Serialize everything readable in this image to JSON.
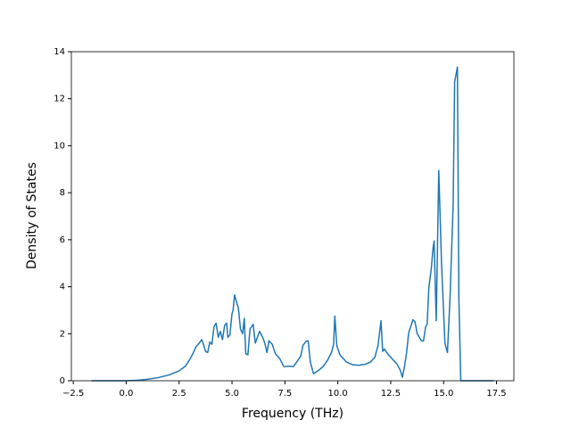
{
  "chart_data": {
    "type": "line",
    "xlabel": "Frequency (THz)",
    "ylabel": "Density of States",
    "xlim": [
      -2.59,
      18.32
    ],
    "ylim": [
      0,
      14
    ],
    "xticks": [
      {
        "value": -2.5,
        "label": "−2.5"
      },
      {
        "value": 0,
        "label": "0.0"
      },
      {
        "value": 2.5,
        "label": "2.5"
      },
      {
        "value": 5,
        "label": "5.0"
      },
      {
        "value": 7.5,
        "label": "7.5"
      },
      {
        "value": 10,
        "label": "10.0"
      },
      {
        "value": 12.5,
        "label": "12.5"
      },
      {
        "value": 15,
        "label": "15.0"
      },
      {
        "value": 17.5,
        "label": "17.5"
      }
    ],
    "yticks": [
      0,
      2,
      4,
      6,
      8,
      10,
      12,
      14
    ],
    "color": "#1f77b4",
    "x": [
      -1.64,
      0,
      0.5,
      1,
      1.5,
      2,
      2.5,
      2.8,
      3.0,
      3.15,
      3.3,
      3.45,
      3.57,
      3.65,
      3.75,
      3.85,
      3.95,
      4.05,
      4.15,
      4.25,
      4.35,
      4.45,
      4.55,
      4.65,
      4.75,
      4.8,
      4.9,
      5.0,
      5.05,
      5.12,
      5.2,
      5.3,
      5.4,
      5.5,
      5.58,
      5.65,
      5.75,
      5.85,
      6.0,
      6.1,
      6.3,
      6.45,
      6.55,
      6.65,
      6.75,
      6.9,
      7.05,
      7.25,
      7.45,
      7.7,
      7.9,
      8.1,
      8.25,
      8.35,
      8.5,
      8.6,
      8.7,
      8.85,
      9.1,
      9.3,
      9.5,
      9.7,
      9.8,
      9.86,
      9.95,
      10.1,
      10.4,
      10.7,
      11.0,
      11.3,
      11.55,
      11.75,
      11.9,
      12.04,
      12.12,
      12.2,
      12.35,
      12.55,
      12.8,
      12.95,
      13.05,
      13.15,
      13.25,
      13.35,
      13.55,
      13.65,
      13.75,
      13.95,
      14.05,
      14.15,
      14.22,
      14.3,
      14.42,
      14.5,
      14.55,
      14.65,
      14.77,
      14.9,
      15.06,
      15.18,
      15.3,
      15.45,
      15.52,
      15.65,
      15.72,
      15.81,
      16.5,
      17.37
    ],
    "values": [
      0,
      0,
      0.02,
      0.06,
      0.13,
      0.24,
      0.42,
      0.62,
      0.9,
      1.15,
      1.45,
      1.6,
      1.75,
      1.55,
      1.25,
      1.2,
      1.65,
      1.55,
      2.3,
      2.45,
      1.85,
      2.1,
      1.75,
      2.35,
      2.45,
      1.85,
      1.95,
      2.85,
      3.0,
      3.65,
      3.4,
      3.1,
      2.2,
      2.0,
      2.65,
      1.15,
      1.1,
      2.2,
      2.4,
      1.6,
      2.1,
      1.85,
      1.6,
      1.2,
      1.7,
      1.55,
      1.15,
      0.95,
      0.6,
      0.62,
      0.6,
      0.85,
      1.05,
      1.5,
      1.68,
      1.7,
      0.8,
      0.3,
      0.45,
      0.6,
      0.85,
      1.2,
      1.55,
      2.75,
      1.5,
      1.1,
      0.8,
      0.68,
      0.66,
      0.7,
      0.8,
      1.0,
      1.5,
      2.55,
      1.25,
      1.35,
      1.15,
      0.95,
      0.7,
      0.45,
      0.15,
      0.6,
      1.2,
      2.05,
      2.6,
      2.5,
      2.0,
      1.7,
      1.7,
      2.3,
      2.4,
      3.95,
      4.8,
      5.65,
      5.95,
      2.55,
      8.95,
      5.0,
      1.6,
      1.2,
      3.5,
      7.5,
      12.7,
      13.35,
      3.5,
      0,
      0,
      0
    ]
  }
}
